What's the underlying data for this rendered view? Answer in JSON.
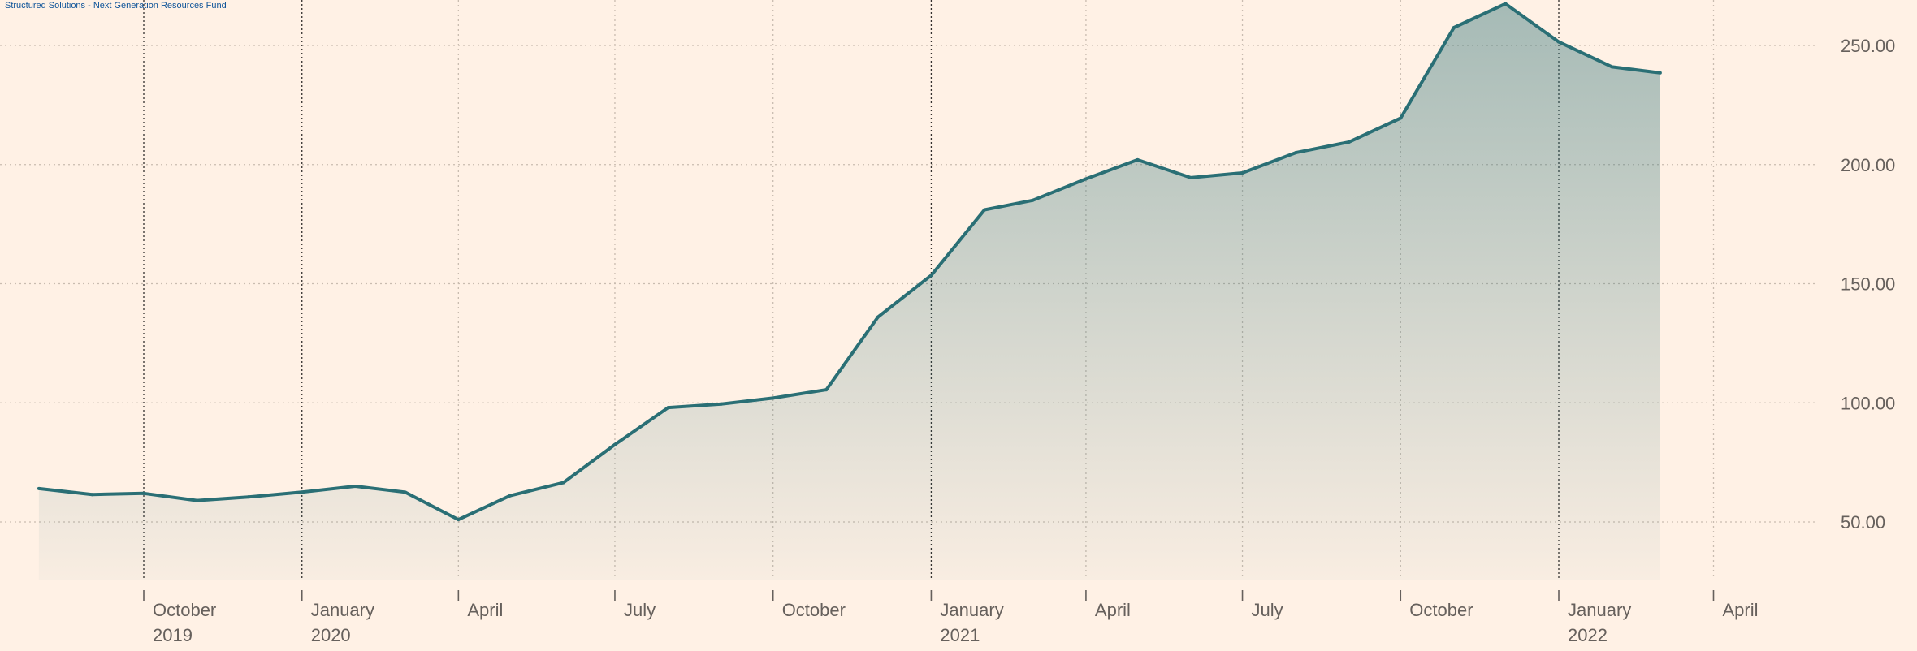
{
  "chart_data": {
    "type": "area",
    "title": "Structured Solutions - Next Generation Resources Fund",
    "x": [
      "2019-07-31",
      "2019-08-31",
      "2019-09-30",
      "2019-10-31",
      "2019-11-30",
      "2019-12-31",
      "2020-01-31",
      "2020-02-29",
      "2020-03-31",
      "2020-04-30",
      "2020-05-31",
      "2020-06-30",
      "2020-07-31",
      "2020-08-31",
      "2020-09-30",
      "2020-10-31",
      "2020-11-30",
      "2020-12-31",
      "2021-01-31",
      "2021-02-28",
      "2021-03-31",
      "2021-04-30",
      "2021-05-31",
      "2021-06-30",
      "2021-07-31",
      "2021-08-31",
      "2021-09-30",
      "2021-10-31",
      "2021-11-30",
      "2021-12-31",
      "2022-01-31",
      "2022-02-28"
    ],
    "values": [
      64,
      61.5,
      62,
      59,
      60.5,
      62.5,
      65,
      62.5,
      51,
      61,
      66.5,
      82.5,
      98,
      99.5,
      102,
      105.5,
      136,
      153.5,
      181,
      185,
      194,
      202,
      194.5,
      196.5,
      205,
      209.5,
      219.5,
      257.5,
      267.5,
      251.5,
      241,
      238.5
    ],
    "ylim": [
      25,
      270
    ],
    "yticks": [
      "50.00",
      "100.00",
      "150.00",
      "200.00",
      "250.00"
    ],
    "ytick_values": [
      50,
      100,
      150,
      200,
      250
    ],
    "xticks": [
      {
        "date": "2019-09-30",
        "label": "October",
        "year": "2019"
      },
      {
        "date": "2019-12-31",
        "label": "January",
        "year": "2020"
      },
      {
        "date": "2020-03-31",
        "label": "April",
        "year": ""
      },
      {
        "date": "2020-06-30",
        "label": "July",
        "year": ""
      },
      {
        "date": "2020-09-30",
        "label": "October",
        "year": ""
      },
      {
        "date": "2020-12-31",
        "label": "January",
        "year": "2021"
      },
      {
        "date": "2021-03-31",
        "label": "April",
        "year": ""
      },
      {
        "date": "2021-06-30",
        "label": "July",
        "year": ""
      },
      {
        "date": "2021-09-30",
        "label": "October",
        "year": ""
      },
      {
        "date": "2021-12-31",
        "label": "January",
        "year": "2022"
      },
      {
        "date": "2022-03-31",
        "label": "April",
        "year": ""
      }
    ],
    "grid": true,
    "colors": {
      "line": "#2a6f75",
      "fill": "#2a6f75",
      "background": "#fff1e5"
    }
  }
}
